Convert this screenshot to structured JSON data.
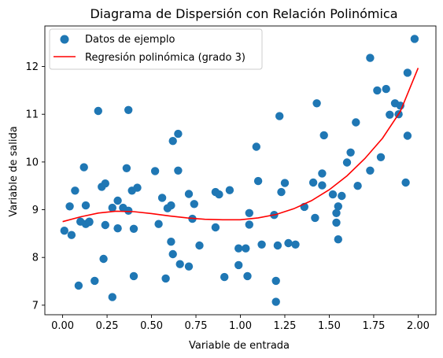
{
  "chart_data": {
    "type": "scatter",
    "title": "Diagrama de Dispersión con Relación Polinómica",
    "xlabel": "Variable de entrada",
    "ylabel": "Variable de salida",
    "xlim": [
      -0.1,
      2.1
    ],
    "ylim": [
      6.8,
      12.85
    ],
    "xticks": [
      "0.00",
      "0.25",
      "0.50",
      "0.75",
      "1.00",
      "1.25",
      "1.50",
      "1.75",
      "2.00"
    ],
    "yticks": [
      "7",
      "8",
      "9",
      "10",
      "11",
      "12"
    ],
    "legend_position": "top-left",
    "colors": {
      "scatter": "#1f77b4",
      "line": "#ff0000"
    },
    "series": [
      {
        "name": "Datos de ejemplo",
        "kind": "scatter",
        "points": [
          [
            0.01,
            8.56
          ],
          [
            0.04,
            9.07
          ],
          [
            0.05,
            8.47
          ],
          [
            0.07,
            9.4
          ],
          [
            0.09,
            7.41
          ],
          [
            0.1,
            8.75
          ],
          [
            0.12,
            9.89
          ],
          [
            0.13,
            9.09
          ],
          [
            0.13,
            8.7
          ],
          [
            0.15,
            8.74
          ],
          [
            0.15,
            8.75
          ],
          [
            0.18,
            7.51
          ],
          [
            0.2,
            11.07
          ],
          [
            0.22,
            9.48
          ],
          [
            0.23,
            7.97
          ],
          [
            0.24,
            9.55
          ],
          [
            0.24,
            8.68
          ],
          [
            0.28,
            9.04
          ],
          [
            0.28,
            7.17
          ],
          [
            0.31,
            9.19
          ],
          [
            0.31,
            8.61
          ],
          [
            0.34,
            9.04
          ],
          [
            0.36,
            9.87
          ],
          [
            0.37,
            11.09
          ],
          [
            0.37,
            8.98
          ],
          [
            0.39,
            9.4
          ],
          [
            0.4,
            7.61
          ],
          [
            0.4,
            8.6
          ],
          [
            0.42,
            9.46
          ],
          [
            0.52,
            9.81
          ],
          [
            0.54,
            8.7
          ],
          [
            0.56,
            9.25
          ],
          [
            0.58,
            7.56
          ],
          [
            0.59,
            9.03
          ],
          [
            0.61,
            9.09
          ],
          [
            0.61,
            8.33
          ],
          [
            0.62,
            8.07
          ],
          [
            0.62,
            10.44
          ],
          [
            0.65,
            10.59
          ],
          [
            0.65,
            9.82
          ],
          [
            0.66,
            7.86
          ],
          [
            0.71,
            7.81
          ],
          [
            0.71,
            9.33
          ],
          [
            0.73,
            8.81
          ],
          [
            0.74,
            9.12
          ],
          [
            0.77,
            8.25
          ],
          [
            0.86,
            8.63
          ],
          [
            0.86,
            9.37
          ],
          [
            0.88,
            9.32
          ],
          [
            0.91,
            7.59
          ],
          [
            0.94,
            9.41
          ],
          [
            0.99,
            7.84
          ],
          [
            0.99,
            8.19
          ],
          [
            1.03,
            8.19
          ],
          [
            1.04,
            7.61
          ],
          [
            1.05,
            8.93
          ],
          [
            1.05,
            8.69
          ],
          [
            1.09,
            10.32
          ],
          [
            1.1,
            9.6
          ],
          [
            1.12,
            8.27
          ],
          [
            1.19,
            8.89
          ],
          [
            1.2,
            7.51
          ],
          [
            1.2,
            7.07
          ],
          [
            1.21,
            8.25
          ],
          [
            1.22,
            10.96
          ],
          [
            1.23,
            9.37
          ],
          [
            1.25,
            9.56
          ],
          [
            1.27,
            8.3
          ],
          [
            1.31,
            8.27
          ],
          [
            1.36,
            9.06
          ],
          [
            1.41,
            9.57
          ],
          [
            1.42,
            8.83
          ],
          [
            1.43,
            11.23
          ],
          [
            1.46,
            9.76
          ],
          [
            1.46,
            9.51
          ],
          [
            1.47,
            10.56
          ],
          [
            1.52,
            9.32
          ],
          [
            1.54,
            8.93
          ],
          [
            1.54,
            8.73
          ],
          [
            1.55,
            8.38
          ],
          [
            1.55,
            9.07
          ],
          [
            1.57,
            9.29
          ],
          [
            1.6,
            9.99
          ],
          [
            1.62,
            10.2
          ],
          [
            1.65,
            10.83
          ],
          [
            1.66,
            9.5
          ],
          [
            1.73,
            12.18
          ],
          [
            1.73,
            9.82
          ],
          [
            1.77,
            11.5
          ],
          [
            1.79,
            10.1
          ],
          [
            1.82,
            11.53
          ],
          [
            1.84,
            10.99
          ],
          [
            1.87,
            11.23
          ],
          [
            1.89,
            11.0
          ],
          [
            1.9,
            11.18
          ],
          [
            1.93,
            9.57
          ],
          [
            1.94,
            10.55
          ],
          [
            1.94,
            11.87
          ],
          [
            1.98,
            12.58
          ]
        ]
      },
      {
        "name": "Regresión polinómica (grado 3)",
        "kind": "line",
        "points": [
          [
            0.0,
            8.75
          ],
          [
            0.1,
            8.85
          ],
          [
            0.2,
            8.93
          ],
          [
            0.3,
            8.97
          ],
          [
            0.4,
            8.96
          ],
          [
            0.5,
            8.92
          ],
          [
            0.6,
            8.87
          ],
          [
            0.7,
            8.83
          ],
          [
            0.8,
            8.8
          ],
          [
            0.9,
            8.79
          ],
          [
            1.0,
            8.79
          ],
          [
            1.1,
            8.83
          ],
          [
            1.2,
            8.9
          ],
          [
            1.3,
            9.02
          ],
          [
            1.4,
            9.19
          ],
          [
            1.5,
            9.42
          ],
          [
            1.6,
            9.71
          ],
          [
            1.7,
            10.07
          ],
          [
            1.8,
            10.5
          ],
          [
            1.9,
            11.06
          ],
          [
            2.0,
            11.97
          ]
        ]
      }
    ]
  }
}
